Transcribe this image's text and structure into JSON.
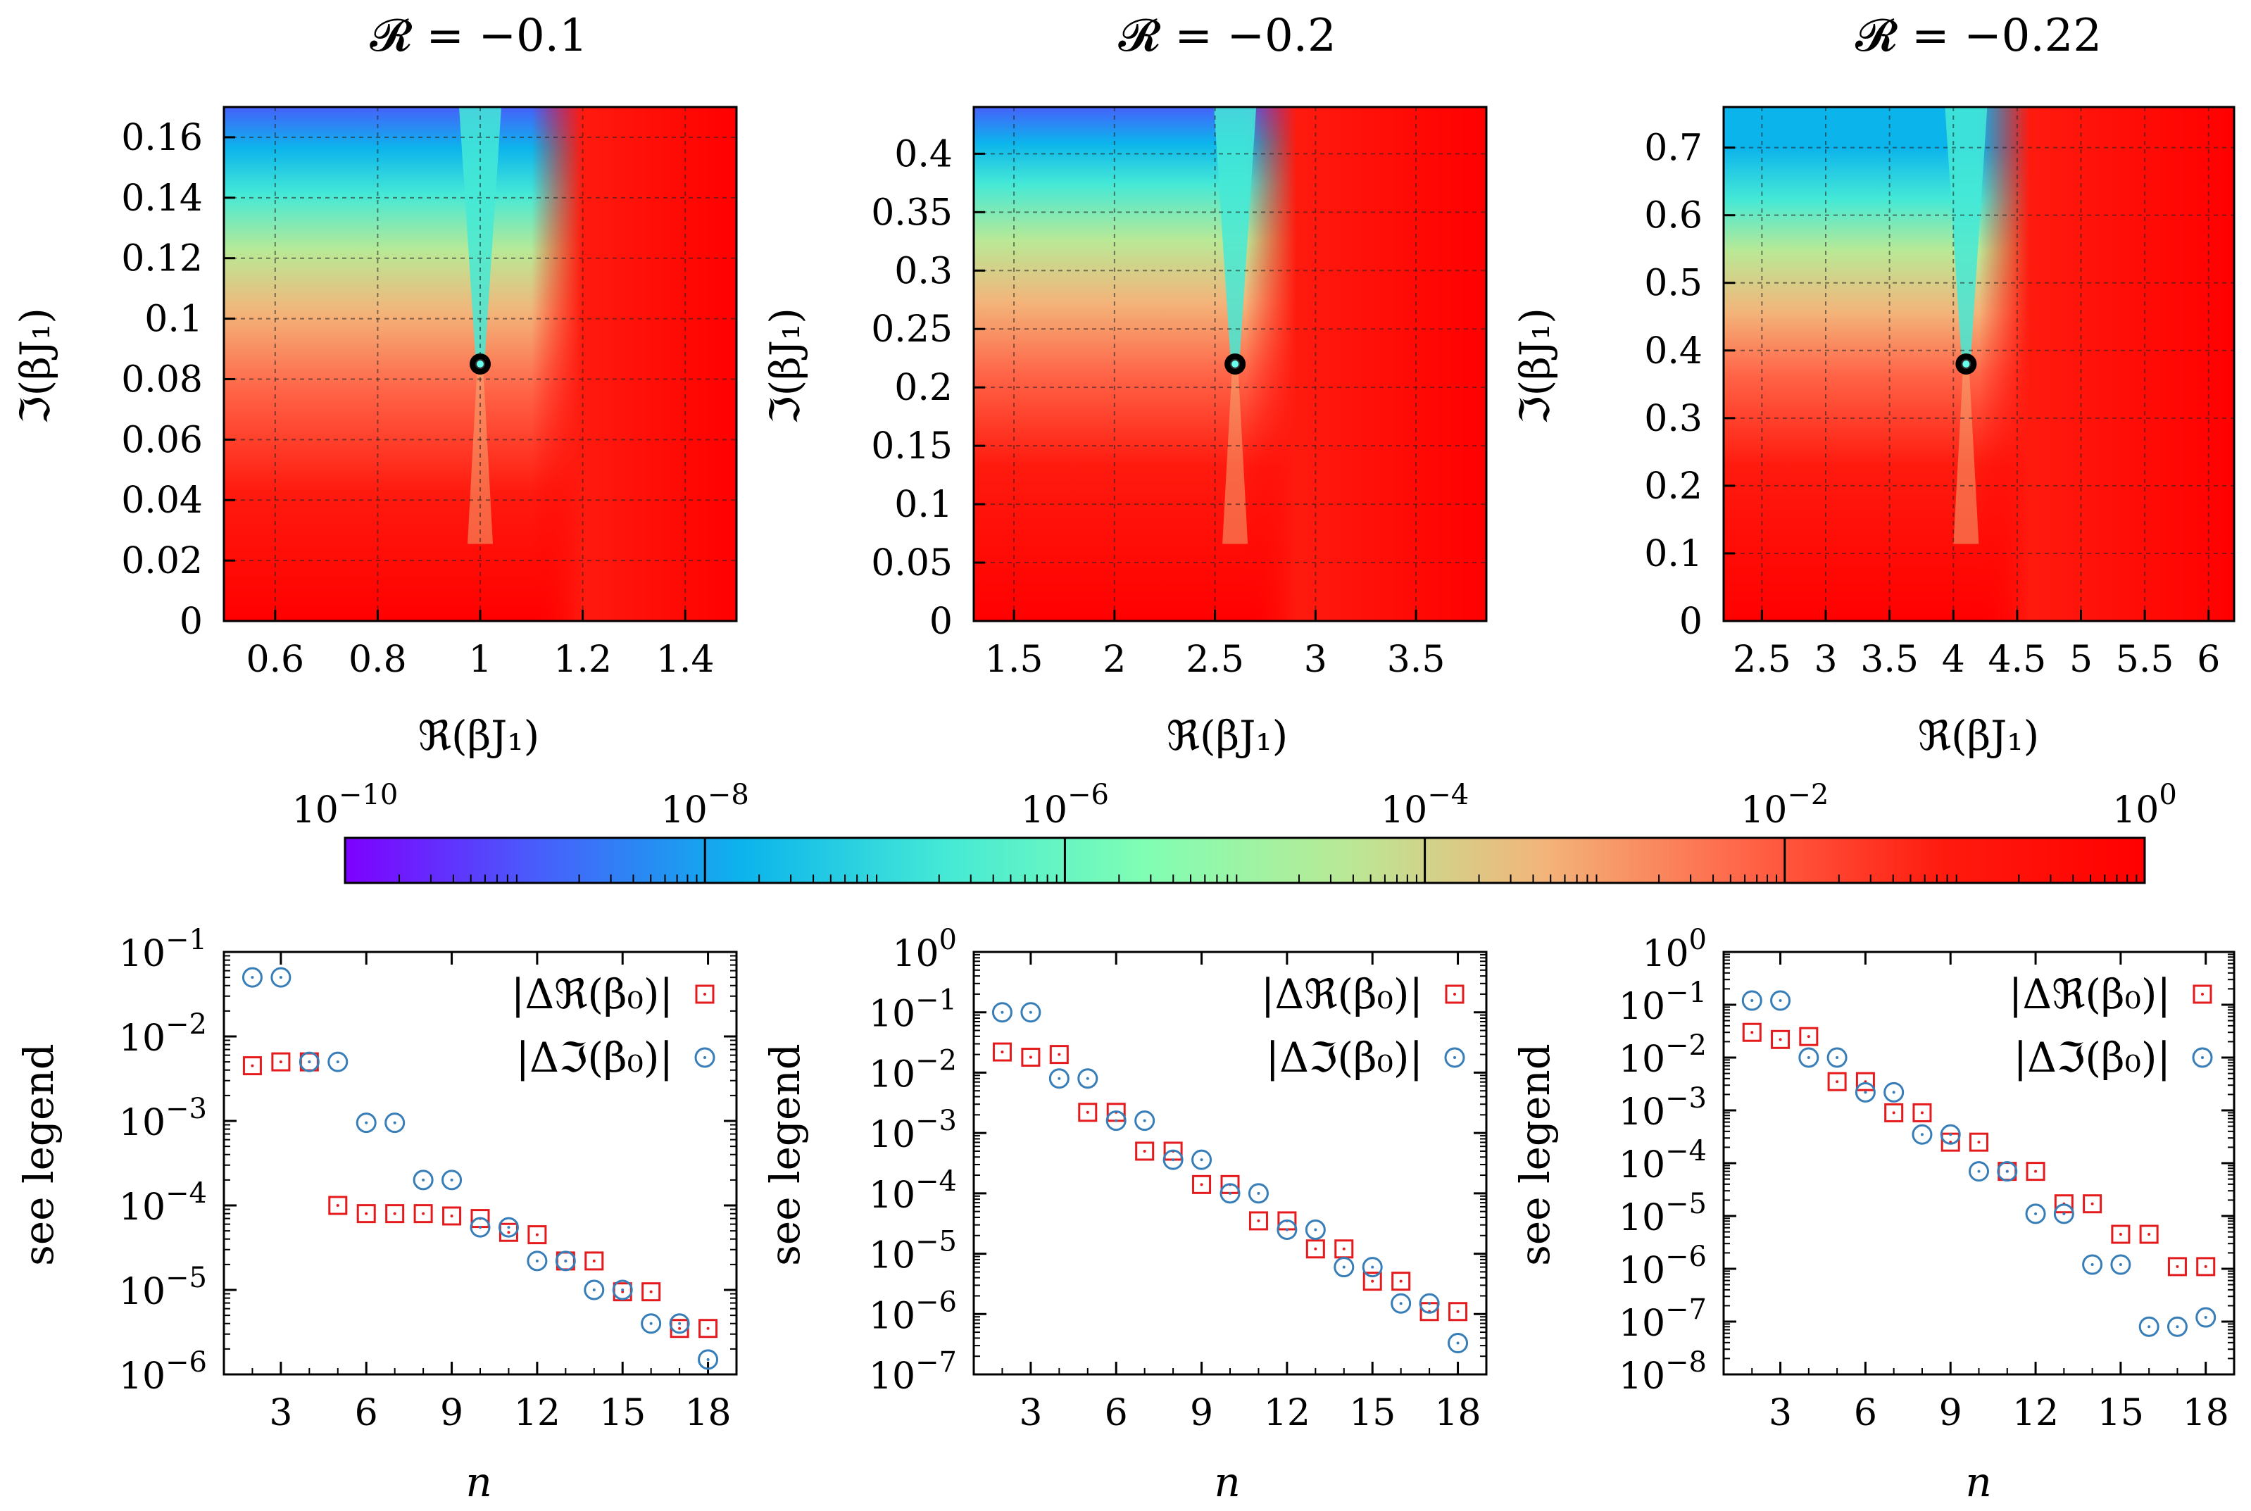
{
  "colorbar": {
    "colors": [
      "#7e00ff",
      "#4661fb",
      "#0cb4ec",
      "#45e9d6",
      "#80feb4",
      "#b9e996",
      "#f3b47a",
      "#ff6548",
      "#ff1a0e",
      "#ff0000"
    ],
    "tick_mantissa": "10",
    "ticks": [
      {
        "exp": "−10"
      },
      {
        "exp": "−8"
      },
      {
        "exp": "−6"
      },
      {
        "exp": "−4"
      },
      {
        "exp": "−2"
      },
      {
        "exp": "0"
      }
    ]
  },
  "chart_data": [
    {
      "type": "heatmap",
      "title": "𝓡 = −0.1",
      "xlabel": "ℜ(βJ₁)",
      "ylabel": "ℑ(βJ₁)",
      "xlim": [
        0.5,
        1.5
      ],
      "ylim": [
        0,
        0.17
      ],
      "xticks": [
        "0.6",
        "0.8",
        "1",
        "1.2",
        "1.4"
      ],
      "yticks": [
        "0",
        "0.02",
        "0.04",
        "0.06",
        "0.08",
        "0.1",
        "0.12",
        "0.14",
        "0.16"
      ],
      "marked_point": {
        "x": 1.0,
        "y": 0.085
      },
      "grid": true,
      "colorscale": "log10 from 1e-10 to 1e0, rainbow"
    },
    {
      "type": "heatmap",
      "title": "𝓡 = −0.2",
      "xlabel": "ℜ(βJ₁)",
      "ylabel": "ℑ(βJ₁)",
      "xlim": [
        1.3,
        3.85
      ],
      "ylim": [
        0,
        0.44
      ],
      "xticks": [
        "1.5",
        "2",
        "2.5",
        "3",
        "3.5"
      ],
      "yticks": [
        "0",
        "0.05",
        "0.1",
        "0.15",
        "0.2",
        "0.25",
        "0.3",
        "0.35",
        "0.4"
      ],
      "marked_point": {
        "x": 2.6,
        "y": 0.22
      },
      "grid": true,
      "colorscale": "log10 from 1e-10 to 1e0, rainbow"
    },
    {
      "type": "heatmap",
      "title": "𝓡 = −0.22",
      "xlabel": "ℜ(βJ₁)",
      "ylabel": "ℑ(βJ₁)",
      "xlim": [
        2.2,
        6.2
      ],
      "ylim": [
        0,
        0.76
      ],
      "xticks": [
        "2.5",
        "3",
        "3.5",
        "4",
        "4.5",
        "5",
        "5.5",
        "6"
      ],
      "yticks": [
        "0",
        "0.1",
        "0.2",
        "0.3",
        "0.4",
        "0.5",
        "0.6",
        "0.7"
      ],
      "marked_point": {
        "x": 4.1,
        "y": 0.38
      },
      "grid": true,
      "colorscale": "log10 from 1e-10 to 1e0, rainbow"
    },
    {
      "type": "scatter",
      "xlabel": "n",
      "ylabel": "see legend",
      "xlim": [
        1,
        19
      ],
      "ylog": true,
      "ylim_exp": [
        -6,
        -1
      ],
      "xticks": [
        "3",
        "6",
        "9",
        "12",
        "15",
        "18"
      ],
      "yticks_exp": [
        "−6",
        "−5",
        "−4",
        "−3",
        "−2",
        "−1"
      ],
      "legend_position": "top-right",
      "series": [
        {
          "name": "|Δℜ(β₀)|",
          "marker": "square",
          "color": "#e41a1c",
          "x": [
            2,
            3,
            4,
            5,
            6,
            7,
            8,
            9,
            10,
            11,
            12,
            13,
            14,
            15,
            16,
            17,
            18
          ],
          "y": [
            0.0045,
            0.005,
            0.005,
            0.0001,
            8e-05,
            8e-05,
            8e-05,
            7.5e-05,
            7e-05,
            4.8e-05,
            4.5e-05,
            2.2e-05,
            2.2e-05,
            9.5e-06,
            9.5e-06,
            3.5e-06,
            3.5e-06
          ]
        },
        {
          "name": "|Δℑ(β₀)|",
          "marker": "circle",
          "color": "#377eb8",
          "x": [
            2,
            3,
            4,
            5,
            6,
            7,
            8,
            9,
            10,
            11,
            12,
            13,
            14,
            15,
            16,
            17,
            18
          ],
          "y": [
            0.05,
            0.05,
            0.005,
            0.005,
            0.00095,
            0.00095,
            0.0002,
            0.0002,
            5.5e-05,
            5.5e-05,
            2.2e-05,
            2.2e-05,
            1e-05,
            1e-05,
            4e-06,
            4e-06,
            1.5e-06
          ]
        }
      ]
    },
    {
      "type": "scatter",
      "xlabel": "n",
      "ylabel": "see legend",
      "xlim": [
        1,
        19
      ],
      "ylog": true,
      "ylim_exp": [
        -7,
        0
      ],
      "xticks": [
        "3",
        "6",
        "9",
        "12",
        "15",
        "18"
      ],
      "yticks_exp": [
        "−7",
        "−6",
        "−5",
        "−4",
        "−3",
        "−2",
        "−1",
        "0"
      ],
      "legend_position": "top-right",
      "series": [
        {
          "name": "|Δℜ(β₀)|",
          "marker": "square",
          "color": "#e41a1c",
          "x": [
            2,
            3,
            4,
            5,
            6,
            7,
            8,
            9,
            10,
            11,
            12,
            13,
            14,
            15,
            16,
            17,
            18
          ],
          "y": [
            0.022,
            0.018,
            0.02,
            0.0022,
            0.0022,
            0.0005,
            0.0005,
            0.00014,
            0.00014,
            3.5e-05,
            3.5e-05,
            1.2e-05,
            1.2e-05,
            3.5e-06,
            3.5e-06,
            1.1e-06,
            1.1e-06
          ]
        },
        {
          "name": "|Δℑ(β₀)|",
          "marker": "circle",
          "color": "#377eb8",
          "x": [
            2,
            3,
            4,
            5,
            6,
            7,
            8,
            9,
            10,
            11,
            12,
            13,
            14,
            15,
            16,
            17,
            18
          ],
          "y": [
            0.1,
            0.1,
            0.008,
            0.008,
            0.0016,
            0.0016,
            0.00036,
            0.00036,
            0.0001,
            0.0001,
            2.5e-05,
            2.5e-05,
            6e-06,
            6e-06,
            1.5e-06,
            1.5e-06,
            3.3e-07
          ]
        }
      ]
    },
    {
      "type": "scatter",
      "xlabel": "n",
      "ylabel": "see legend",
      "xlim": [
        1,
        19
      ],
      "ylog": true,
      "ylim_exp": [
        -8,
        0
      ],
      "xticks": [
        "3",
        "6",
        "9",
        "12",
        "15",
        "18"
      ],
      "yticks_exp": [
        "−8",
        "−7",
        "−6",
        "−5",
        "−4",
        "−3",
        "−2",
        "−1",
        "0"
      ],
      "legend_position": "top-right",
      "series": [
        {
          "name": "|Δℜ(β₀)|",
          "marker": "square",
          "color": "#e41a1c",
          "x": [
            2,
            3,
            4,
            5,
            6,
            7,
            8,
            9,
            10,
            11,
            12,
            13,
            14,
            15,
            16,
            17,
            18
          ],
          "y": [
            0.03,
            0.022,
            0.025,
            0.0035,
            0.0035,
            0.0009,
            0.0009,
            0.00025,
            0.00025,
            7e-05,
            7e-05,
            1.7e-05,
            1.7e-05,
            4.5e-06,
            4.5e-06,
            1.1e-06,
            1.1e-06
          ]
        },
        {
          "name": "|Δℑ(β₀)|",
          "marker": "circle",
          "color": "#377eb8",
          "x": [
            2,
            3,
            4,
            5,
            6,
            7,
            8,
            9,
            10,
            11,
            12,
            13,
            14,
            15,
            16,
            17,
            18
          ],
          "y": [
            0.12,
            0.12,
            0.01,
            0.01,
            0.0022,
            0.0022,
            0.00035,
            0.00035,
            7e-05,
            7e-05,
            1.1e-05,
            1.1e-05,
            1.2e-06,
            1.2e-06,
            8e-08,
            8e-08,
            1.2e-07
          ]
        }
      ]
    }
  ]
}
